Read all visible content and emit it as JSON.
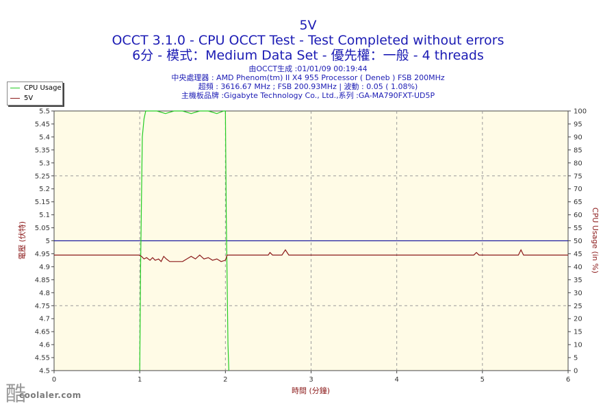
{
  "header": {
    "title": "5V",
    "subtitle_1": "OCCT 3.1.0 - CPU OCCT Test - Test Completed without errors",
    "subtitle_2": "6分 - 模式：Medium Data Set - 優先權：一般 - 4 threads",
    "info_lines": [
      "由OCCT生成 :01/01/09 00:19:44",
      "中央處理器 : AMD Phenom(tm) II X4 955 Processor ( Deneb ) FSB 200MHz",
      "超頻 : 3616.67 MHz ; FSB 200.93MHz | 波動 : 0.05 ( 1.08%)",
      "主機板品牌 :Gigabyte Technology Co., Ltd.,系列 :GA-MA790FXT-UD5P"
    ]
  },
  "watermark": {
    "text": "coolaler.com",
    "glyph": "酷"
  },
  "colors": {
    "title": "#1b1bb4",
    "plot_bg": "#fffbe6",
    "cpu_usage": "#22cc22",
    "voltage": "#8b1a1a",
    "reference": "#1a1aa0",
    "left_axis_label": "#8b1a1a",
    "right_axis_label": "#8b1a1a",
    "x_axis_label": "#8b1a1a"
  },
  "chart_data": {
    "type": "line",
    "xlabel": "時間 (分鐘)",
    "ylabel_left": "電壓 (伏特)",
    "ylabel_right": "CPU Usage (in %)",
    "xlim": [
      0,
      6
    ],
    "ylim_left": [
      4.5,
      5.5
    ],
    "ylim_right": [
      0,
      100
    ],
    "x_ticks": [
      "0",
      "1",
      "2",
      "3",
      "4",
      "5",
      "6"
    ],
    "y_left_ticks": [
      "4.5",
      "4.55",
      "4.6",
      "4.65",
      "4.7",
      "4.75",
      "4.8",
      "4.85",
      "4.9",
      "4.95",
      "5",
      "5.05",
      "5.1",
      "5.15",
      "5.2",
      "5.25",
      "5.3",
      "5.35",
      "5.4",
      "5.45",
      "5.5"
    ],
    "y_right_ticks": [
      "0",
      "5",
      "10",
      "15",
      "20",
      "25",
      "30",
      "35",
      "40",
      "45",
      "50",
      "55",
      "60",
      "65",
      "70",
      "75",
      "80",
      "85",
      "90",
      "95",
      "100"
    ],
    "grid": true,
    "legend": "top-left",
    "reference_line": 5.0,
    "series": [
      {
        "name": "CPU Usage",
        "axis": "right",
        "x": [
          1.0,
          1.01,
          1.03,
          1.05,
          1.07,
          1.1,
          1.2,
          1.3,
          1.4,
          1.5,
          1.6,
          1.7,
          1.8,
          1.9,
          1.98,
          2.0,
          2.01,
          2.03,
          2.04
        ],
        "y": [
          0,
          40,
          90,
          97,
          100,
          100,
          100,
          99,
          100,
          100,
          99,
          100,
          100,
          99,
          100,
          100,
          60,
          10,
          0
        ]
      },
      {
        "name": "5V",
        "axis": "left",
        "x": [
          0,
          0.5,
          0.99,
          1.02,
          1.05,
          1.08,
          1.12,
          1.15,
          1.18,
          1.22,
          1.25,
          1.28,
          1.31,
          1.35,
          1.4,
          1.45,
          1.5,
          1.55,
          1.6,
          1.65,
          1.7,
          1.75,
          1.8,
          1.85,
          1.9,
          1.95,
          2.0,
          2.02,
          2.05,
          2.5,
          2.52,
          2.55,
          2.6,
          2.66,
          2.7,
          2.74,
          3.0,
          4.0,
          4.9,
          4.93,
          4.96,
          5.0,
          5.42,
          5.45,
          5.48,
          5.52,
          6.0
        ],
        "y": [
          4.945,
          4.945,
          4.945,
          4.94,
          4.93,
          4.935,
          4.925,
          4.935,
          4.925,
          4.93,
          4.92,
          4.94,
          4.93,
          4.92,
          4.92,
          4.92,
          4.92,
          4.93,
          4.94,
          4.93,
          4.945,
          4.93,
          4.935,
          4.925,
          4.93,
          4.92,
          4.925,
          4.945,
          4.945,
          4.945,
          4.955,
          4.945,
          4.945,
          4.945,
          4.965,
          4.945,
          4.945,
          4.945,
          4.945,
          4.955,
          4.945,
          4.945,
          4.945,
          4.965,
          4.945,
          4.945,
          4.945
        ]
      }
    ]
  }
}
